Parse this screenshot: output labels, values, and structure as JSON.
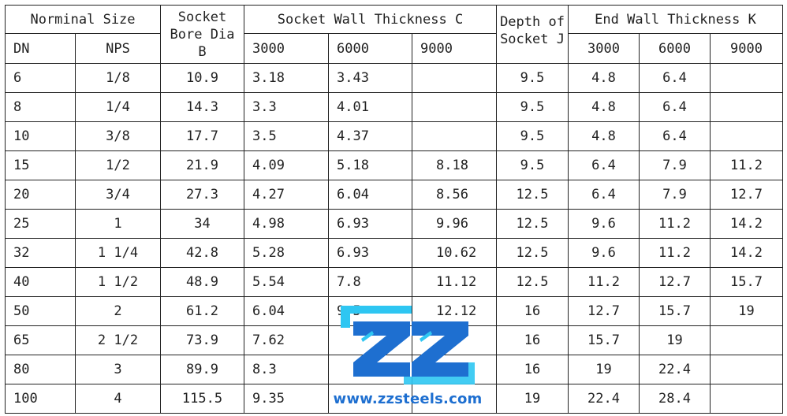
{
  "headers": {
    "nominal_size": "Norminal Size",
    "dn": "DN",
    "nps": "NPS",
    "bore_line1": "Socket",
    "bore_line2": "Bore Dia",
    "bore_line3": "B",
    "wall": "Socket Wall Thickness C",
    "depth_line1": "Depth of",
    "depth_line2": "Socket J",
    "end_wall": "End Wall Thickness K",
    "c3000": "3000",
    "c6000": "6000",
    "c9000": "9000",
    "k3000": "3000",
    "k6000": "6000",
    "k9000": "9000"
  },
  "rows": [
    {
      "dn": "6",
      "nps": "1/8",
      "b": "10.9",
      "c3000": "3.18",
      "c6000": "3.43",
      "c9000": "",
      "j": "9.5",
      "k3000": "4.8",
      "k6000": "6.4",
      "k9000": ""
    },
    {
      "dn": "8",
      "nps": "1/4",
      "b": "14.3",
      "c3000": "3.3",
      "c6000": "4.01",
      "c9000": "",
      "j": "9.5",
      "k3000": "4.8",
      "k6000": "6.4",
      "k9000": ""
    },
    {
      "dn": "10",
      "nps": "3/8",
      "b": "17.7",
      "c3000": "3.5",
      "c6000": "4.37",
      "c9000": "",
      "j": "9.5",
      "k3000": "4.8",
      "k6000": "6.4",
      "k9000": ""
    },
    {
      "dn": "15",
      "nps": "1/2",
      "b": "21.9",
      "c3000": "4.09",
      "c6000": "5.18",
      "c9000": "8.18",
      "j": "9.5",
      "k3000": "6.4",
      "k6000": "7.9",
      "k9000": "11.2"
    },
    {
      "dn": "20",
      "nps": "3/4",
      "b": "27.3",
      "c3000": "4.27",
      "c6000": "6.04",
      "c9000": "8.56",
      "j": "12.5",
      "k3000": "6.4",
      "k6000": "7.9",
      "k9000": "12.7"
    },
    {
      "dn": "25",
      "nps": "1",
      "b": "34",
      "c3000": "4.98",
      "c6000": "6.93",
      "c9000": "9.96",
      "j": "12.5",
      "k3000": "9.6",
      "k6000": "11.2",
      "k9000": "14.2"
    },
    {
      "dn": "32",
      "nps": "1 1/4",
      "b": "42.8",
      "c3000": "5.28",
      "c6000": "6.93",
      "c9000": "10.62",
      "j": "12.5",
      "k3000": "9.6",
      "k6000": "11.2",
      "k9000": "14.2"
    },
    {
      "dn": "40",
      "nps": "1 1/2",
      "b": "48.9",
      "c3000": "5.54",
      "c6000": "7.8",
      "c9000": "11.12",
      "j": "12.5",
      "k3000": "11.2",
      "k6000": "12.7",
      "k9000": "15.7"
    },
    {
      "dn": "50",
      "nps": "2",
      "b": "61.2",
      "c3000": "6.04",
      "c6000": "9.5",
      "c9000": "12.12",
      "j": "16",
      "k3000": "12.7",
      "k6000": "15.7",
      "k9000": "19"
    },
    {
      "dn": "65",
      "nps": "2 1/2",
      "b": "73.9",
      "c3000": "7.62",
      "c6000": "",
      "c9000": "",
      "j": "16",
      "k3000": "15.7",
      "k6000": "19",
      "k9000": ""
    },
    {
      "dn": "80",
      "nps": "3",
      "b": "89.9",
      "c3000": "8.3",
      "c6000": "",
      "c9000": "",
      "j": "16",
      "k3000": "19",
      "k6000": "22.4",
      "k9000": ""
    },
    {
      "dn": "100",
      "nps": "4",
      "b": "115.5",
      "c3000": "9.35",
      "c6000": "",
      "c9000": "",
      "j": "19",
      "k3000": "22.4",
      "k6000": "28.4",
      "k9000": ""
    }
  ],
  "watermark": {
    "url": "www.zzsteels.com",
    "logo_text": "ZZ",
    "color_blue": "#1e6fd0",
    "color_cyan": "#2ec6f2"
  }
}
